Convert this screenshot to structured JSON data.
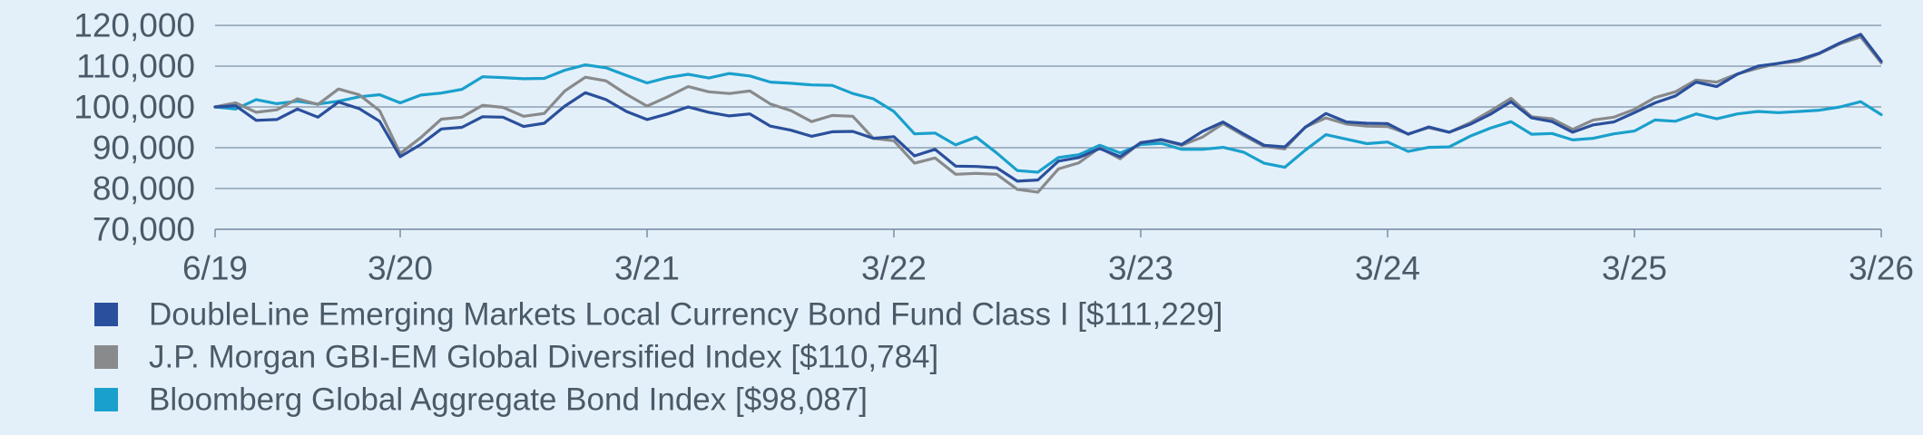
{
  "chart_data": {
    "type": "line",
    "title": "",
    "xlabel": "",
    "ylabel": "",
    "ylim": [
      70000,
      120000
    ],
    "yticks": [
      70000,
      80000,
      90000,
      100000,
      110000,
      120000
    ],
    "ytick_labels": [
      "70,000",
      "80,000",
      "90,000",
      "100,000",
      "110,000",
      "120,000"
    ],
    "xlim": [
      0,
      81
    ],
    "xtick_labels": [
      {
        "label": "6/19",
        "x": 0
      },
      {
        "label": "3/20",
        "x": 9
      },
      {
        "label": "3/21",
        "x": 21
      },
      {
        "label": "3/22",
        "x": 33
      },
      {
        "label": "3/23",
        "x": 45
      },
      {
        "label": "3/24",
        "x": 57
      },
      {
        "label": "3/25",
        "x": 69
      },
      {
        "label": "3/26",
        "x": 81
      }
    ],
    "grid": true,
    "legend_position": "bottom-left",
    "series": [
      {
        "name": "DoubleLine Emerging Markets Local Currency Bond Fund Class I [$111,229]",
        "color": "#2a4f9c",
        "values": [
          100000,
          100300,
          96700,
          96900,
          99500,
          97500,
          101200,
          99600,
          96500,
          87800,
          90800,
          94600,
          95000,
          97600,
          97500,
          95200,
          96000,
          100200,
          103500,
          101800,
          98900,
          96900,
          98300,
          100000,
          98700,
          97800,
          98300,
          95300,
          94300,
          92800,
          93900,
          94000,
          92300,
          92700,
          88000,
          89600,
          85500,
          85400,
          85100,
          81800,
          82100,
          86700,
          87600,
          89800,
          87800,
          91200,
          92000,
          90800,
          94000,
          96300,
          93400,
          90600,
          90200,
          95000,
          98400,
          96300,
          96000,
          95900,
          93300,
          95100,
          93800,
          95700,
          98200,
          101300,
          97300,
          96400,
          93800,
          95600,
          96300,
          98600,
          101000,
          102700,
          106100,
          105000,
          108000,
          110000,
          110700,
          111600,
          113200,
          115700,
          117800,
          111200
        ]
      },
      {
        "name": "J.P. Morgan GBI-EM Global Diversified Index [$110,784]",
        "color": "#888a8c",
        "values": [
          100000,
          101000,
          98700,
          99300,
          102000,
          100600,
          104400,
          103000,
          99100,
          88600,
          92500,
          97000,
          97500,
          100400,
          99900,
          97700,
          98400,
          103900,
          107300,
          106400,
          103100,
          100200,
          102500,
          105000,
          103700,
          103300,
          103900,
          100700,
          99100,
          96400,
          97900,
          97700,
          92300,
          91700,
          86200,
          87500,
          83500,
          83700,
          83500,
          79800,
          79100,
          84800,
          86300,
          90000,
          87300,
          91300,
          91900,
          90600,
          92600,
          95900,
          93000,
          90300,
          89700,
          95100,
          97300,
          95800,
          95300,
          95200,
          93400,
          94900,
          93800,
          96100,
          99000,
          102100,
          97600,
          97100,
          94500,
          96800,
          97500,
          99400,
          102300,
          103700,
          106600,
          106100,
          108100,
          109500,
          110700,
          111200,
          113100,
          115500,
          117200,
          110800
        ]
      },
      {
        "name": "Bloomberg Global Aggregate Bond Index [$98,087]",
        "color": "#1aa0cc",
        "values": [
          100000,
          99500,
          101800,
          100800,
          101400,
          100700,
          101400,
          102500,
          103000,
          101000,
          102900,
          103400,
          104300,
          107400,
          107200,
          106900,
          107000,
          109000,
          110300,
          109600,
          107700,
          105900,
          107200,
          108000,
          107100,
          108200,
          107600,
          106100,
          105800,
          105400,
          105300,
          103300,
          102000,
          98900,
          93400,
          93600,
          90700,
          92600,
          88700,
          84400,
          84000,
          87600,
          88300,
          90600,
          88700,
          90800,
          91100,
          89600,
          89600,
          90100,
          88900,
          86200,
          85200,
          89400,
          93200,
          92100,
          91000,
          91400,
          89100,
          90100,
          90200,
          92800,
          94800,
          96400,
          93300,
          93500,
          91900,
          92300,
          93400,
          94100,
          96800,
          96500,
          98300,
          97100,
          98300,
          98900,
          98600,
          98900,
          99200,
          100000,
          101300,
          98100
        ]
      }
    ]
  }
}
